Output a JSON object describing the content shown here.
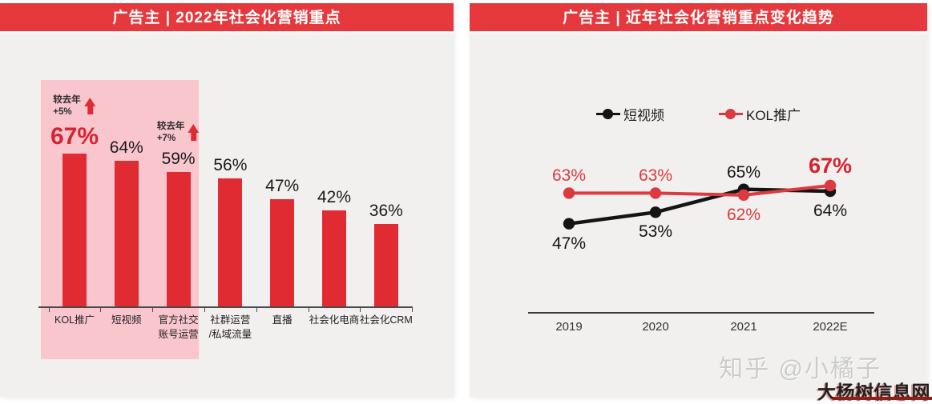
{
  "watermarks": {
    "zhihu": "知乎 @小橘子",
    "site": "大杨树信息网"
  },
  "chart_data": [
    {
      "type": "bar",
      "title": "广告主 | 2022年社会化营销重点",
      "unit": "%",
      "categories": [
        "KOL推广",
        "短视频",
        "官方社交\n账号运营",
        "社群运营\n/私域流量",
        "直播",
        "社会化电商",
        "社会化CRM"
      ],
      "values": [
        67,
        64,
        59,
        56,
        47,
        42,
        36
      ],
      "annotations": [
        {
          "index": 0,
          "text": "较去年\n+5%"
        },
        {
          "index": 2,
          "text": "较去年\n+7%"
        }
      ],
      "emphasis_index": 0,
      "highlight_categories": [
        "KOL推广",
        "短视频",
        "官方社交账号运营"
      ],
      "bar_color": "#e02b33",
      "highlight_color": "#f9c6ce",
      "ylim": [
        0,
        100
      ],
      "grid": false
    },
    {
      "type": "line",
      "title": "广告主 | 近年社会化营销重点变化趋势",
      "unit": "%",
      "x": [
        "2019",
        "2020",
        "2021",
        "2022E"
      ],
      "series": [
        {
          "name": "短视频",
          "color": "#141414",
          "values": [
            47,
            53,
            65,
            64
          ],
          "label_side": [
            "below",
            "below",
            "above",
            "below"
          ]
        },
        {
          "name": "KOL推广",
          "color": "#da3a40",
          "values": [
            63,
            63,
            62,
            67
          ],
          "label_side": [
            "above",
            "above",
            "below",
            "above"
          ],
          "emphasis_index": 3,
          "emphasis_color": "#d5232f"
        }
      ],
      "legend_position": "top",
      "ylim": [
        40,
        75
      ],
      "grid": false
    }
  ]
}
